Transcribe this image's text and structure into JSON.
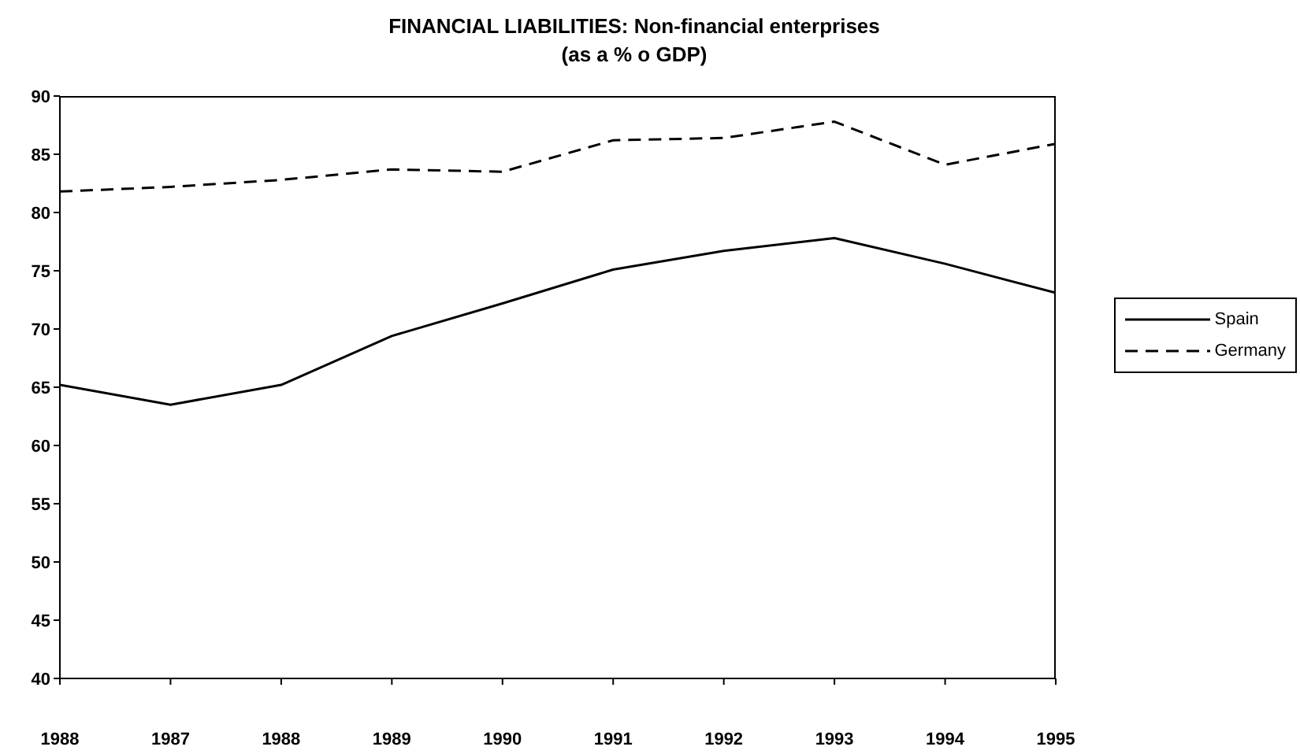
{
  "chart_data": {
    "type": "line",
    "title": "FINANCIAL LIABILITIES: Non-financial enterprises",
    "subtitle": "(as a % o  GDP)",
    "categories": [
      "1988",
      "1987",
      "1988",
      "1989",
      "1990",
      "1991",
      "1992",
      "1993",
      "1994",
      "1995"
    ],
    "series": [
      {
        "name": "Spain",
        "color": "#000000",
        "line_style": "solid",
        "values": [
          65.2,
          63.5,
          65.2,
          69.4,
          72.2,
          75.1,
          76.7,
          77.8,
          75.6,
          73.1
        ]
      },
      {
        "name": "Germany",
        "color": "#000000",
        "line_style": "dashed",
        "values": [
          81.8,
          82.2,
          82.8,
          83.7,
          83.5,
          86.2,
          86.4,
          87.8,
          84.1,
          85.9
        ]
      }
    ],
    "ylim": [
      40,
      90
    ],
    "yticks": [
      40,
      45,
      50,
      55,
      60,
      65,
      70,
      75,
      80,
      85,
      90
    ],
    "grid": false,
    "legend": "right",
    "marker": "none"
  }
}
